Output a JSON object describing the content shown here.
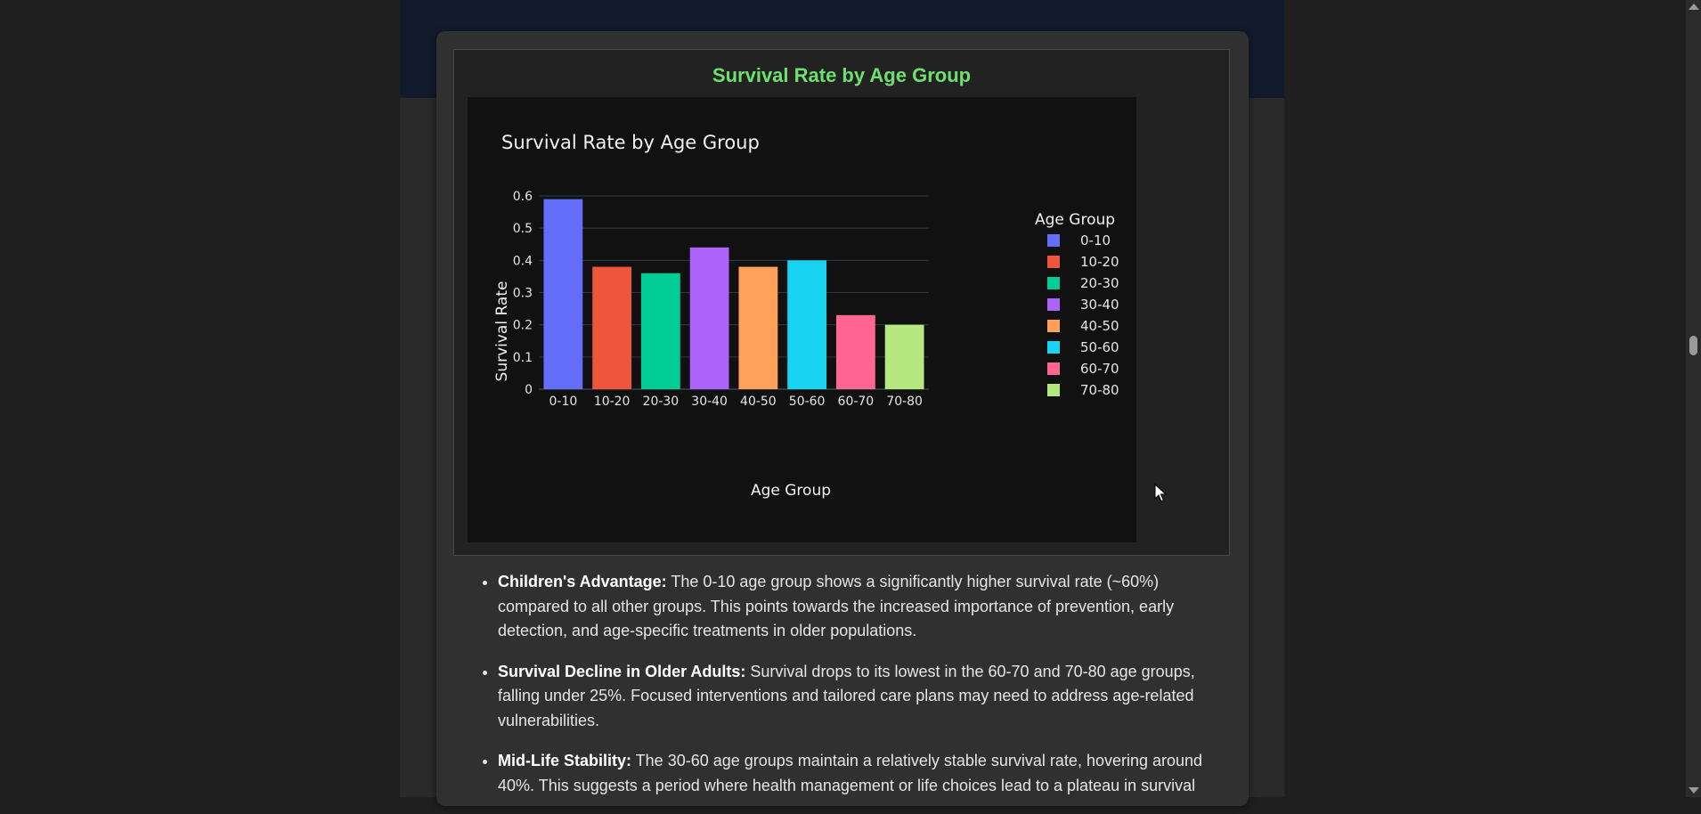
{
  "card": {
    "title": "Survival Rate by Age Group"
  },
  "chart_data": {
    "type": "bar",
    "title": "Survival Rate by Age Group",
    "xlabel": "Age Group",
    "ylabel": "Survival Rate",
    "categories": [
      "0-10",
      "10-20",
      "20-30",
      "30-40",
      "40-50",
      "50-60",
      "60-70",
      "70-80"
    ],
    "values": [
      0.59,
      0.38,
      0.36,
      0.44,
      0.38,
      0.4,
      0.23,
      0.2
    ],
    "colors": [
      "#636efa",
      "#ef553b",
      "#00cc96",
      "#ab63fa",
      "#ffa15a",
      "#19d3f3",
      "#ff6692",
      "#b6e880"
    ],
    "ylim": [
      0,
      0.6
    ],
    "yticks": [
      "0",
      "0.1",
      "0.2",
      "0.3",
      "0.4",
      "0.5",
      "0.6"
    ],
    "grid": true,
    "legend": {
      "title": "Age Group",
      "position": "right"
    }
  },
  "insights": [
    {
      "title": "Children's Advantage:",
      "text": " The 0-10 age group shows a significantly higher survival rate (~60%) compared to all other groups. This points towards the increased importance of prevention, early detection, and age-specific treatments in older populations."
    },
    {
      "title": "Survival Decline in Older Adults:",
      "text": " Survival drops to its lowest in the 60-70 and 70-80 age groups, falling under 25%. Focused interventions and tailored care plans may need to address age-related vulnerabilities."
    },
    {
      "title": "Mid-Life Stability:",
      "text": " The 30-60 age groups maintain a relatively stable survival rate, hovering around 40%. This suggests a period where health management or life choices lead to a plateau in survival"
    }
  ]
}
